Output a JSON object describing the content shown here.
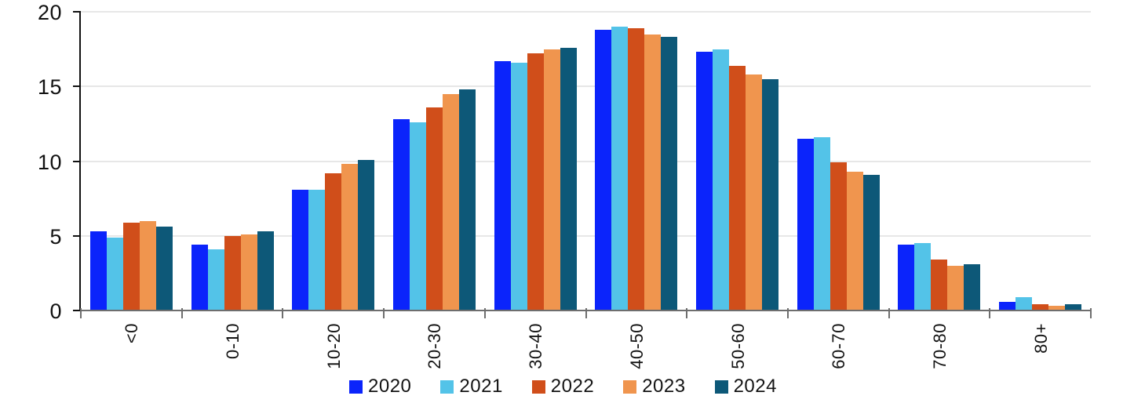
{
  "chart_data": {
    "type": "bar",
    "title": "",
    "categories": [
      "<0",
      "0-10",
      "10-20",
      "20-30",
      "30-40",
      "40-50",
      "50-60",
      "60-70",
      "70-80",
      "80+"
    ],
    "series": [
      {
        "name": "2020",
        "color": "#0b24fb",
        "values": [
          5.3,
          4.4,
          8.1,
          12.8,
          16.7,
          18.8,
          17.3,
          11.5,
          4.4,
          0.6
        ]
      },
      {
        "name": "2021",
        "color": "#53c3e8",
        "values": [
          4.9,
          4.1,
          8.1,
          12.6,
          16.6,
          19.0,
          17.5,
          11.6,
          4.5,
          0.9
        ]
      },
      {
        "name": "2022",
        "color": "#d04e1a",
        "values": [
          5.9,
          5.0,
          9.2,
          13.6,
          17.2,
          18.9,
          16.4,
          9.9,
          3.4,
          0.4
        ]
      },
      {
        "name": "2023",
        "color": "#f0954e",
        "values": [
          6.0,
          5.1,
          9.8,
          14.5,
          17.5,
          18.5,
          15.8,
          9.3,
          3.0,
          0.3
        ]
      },
      {
        "name": "2024",
        "color": "#0d5878",
        "values": [
          5.6,
          5.3,
          10.1,
          14.8,
          17.6,
          18.3,
          15.5,
          9.1,
          3.1,
          0.4
        ]
      }
    ],
    "xlabel": "",
    "ylabel": "",
    "ylim": [
      0,
      20
    ],
    "yticks": [
      0,
      5,
      10,
      15,
      20
    ],
    "grid": true,
    "gridline_color": "#e7e7e7",
    "legend_position": "bottom"
  }
}
